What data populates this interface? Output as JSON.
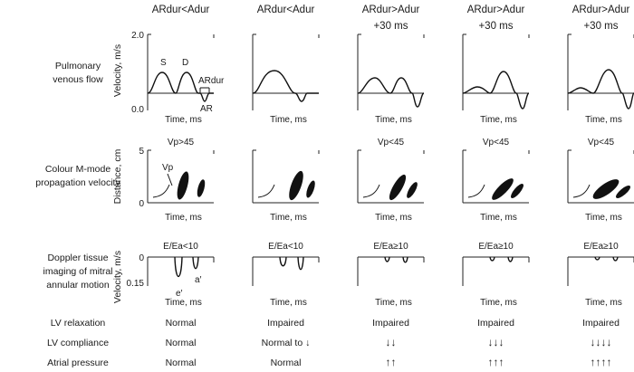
{
  "columns": [
    {
      "header": "ARdur<Adur",
      "header_sub": "",
      "vp_label": "Vp>45",
      "ratio_label": "E/Ea<10",
      "relaxation": "Normal",
      "compliance": "Normal",
      "atrial_pressure": "Normal"
    },
    {
      "header": "ARdur<Adur",
      "header_sub": "",
      "vp_label": "",
      "ratio_label": "E/Ea<10",
      "relaxation": "Impaired",
      "compliance": "Normal to ↓",
      "atrial_pressure": "Normal"
    },
    {
      "header": "ARdur>Adur",
      "header_sub": "+30 ms",
      "vp_label": "Vp<45",
      "ratio_label": "E/Ea≥10",
      "relaxation": "Impaired",
      "compliance": "↓↓",
      "atrial_pressure": "↑↑"
    },
    {
      "header": "ARdur>Adur",
      "header_sub": "+30 ms",
      "vp_label": "Vp<45",
      "ratio_label": "E/Ea≥10",
      "relaxation": "Impaired",
      "compliance": "↓↓↓",
      "atrial_pressure": "↑↑↑"
    },
    {
      "header": "ARdur>Adur",
      "header_sub": "+30 ms",
      "vp_label": "Vp<45",
      "ratio_label": "E/Ea≥10",
      "relaxation": "Impaired",
      "compliance": "↓↓↓↓",
      "atrial_pressure": "↑↑↑↑"
    }
  ],
  "rows": {
    "pulmonary": {
      "label_line1": "Pulmonary",
      "label_line2": "venous flow",
      "ylabel": "Velocity, m/s",
      "tick_top": "2.0",
      "tick_bottom": "0.0",
      "xlabel": "Time, ms"
    },
    "colour_mmode": {
      "label_line1": "Colour M-mode",
      "label_line2": "propagation velocity",
      "ylabel": "Distance, cm",
      "tick_top": "5",
      "tick_bottom": "0",
      "xlabel": "Time, ms"
    },
    "doppler_tissue": {
      "label_line1": "Doppler tissue",
      "label_line2": "imaging of mitral",
      "label_line3": "annular motion",
      "ylabel": "Velocity, m/s",
      "tick_top": "0",
      "tick_bottom": "0.15",
      "xlabel": "Time, ms"
    },
    "lv_relaxation": {
      "label": "LV relaxation"
    },
    "lv_compliance": {
      "label": "LV compliance"
    },
    "atrial_pressure": {
      "label": "Atrial pressure"
    }
  },
  "annotations": {
    "s_wave": "S",
    "d_wave": "D",
    "ardur": "ARdur",
    "ar_wave": "AR",
    "vp": "Vp",
    "e_prime": "e′",
    "a_prime": "a′"
  }
}
